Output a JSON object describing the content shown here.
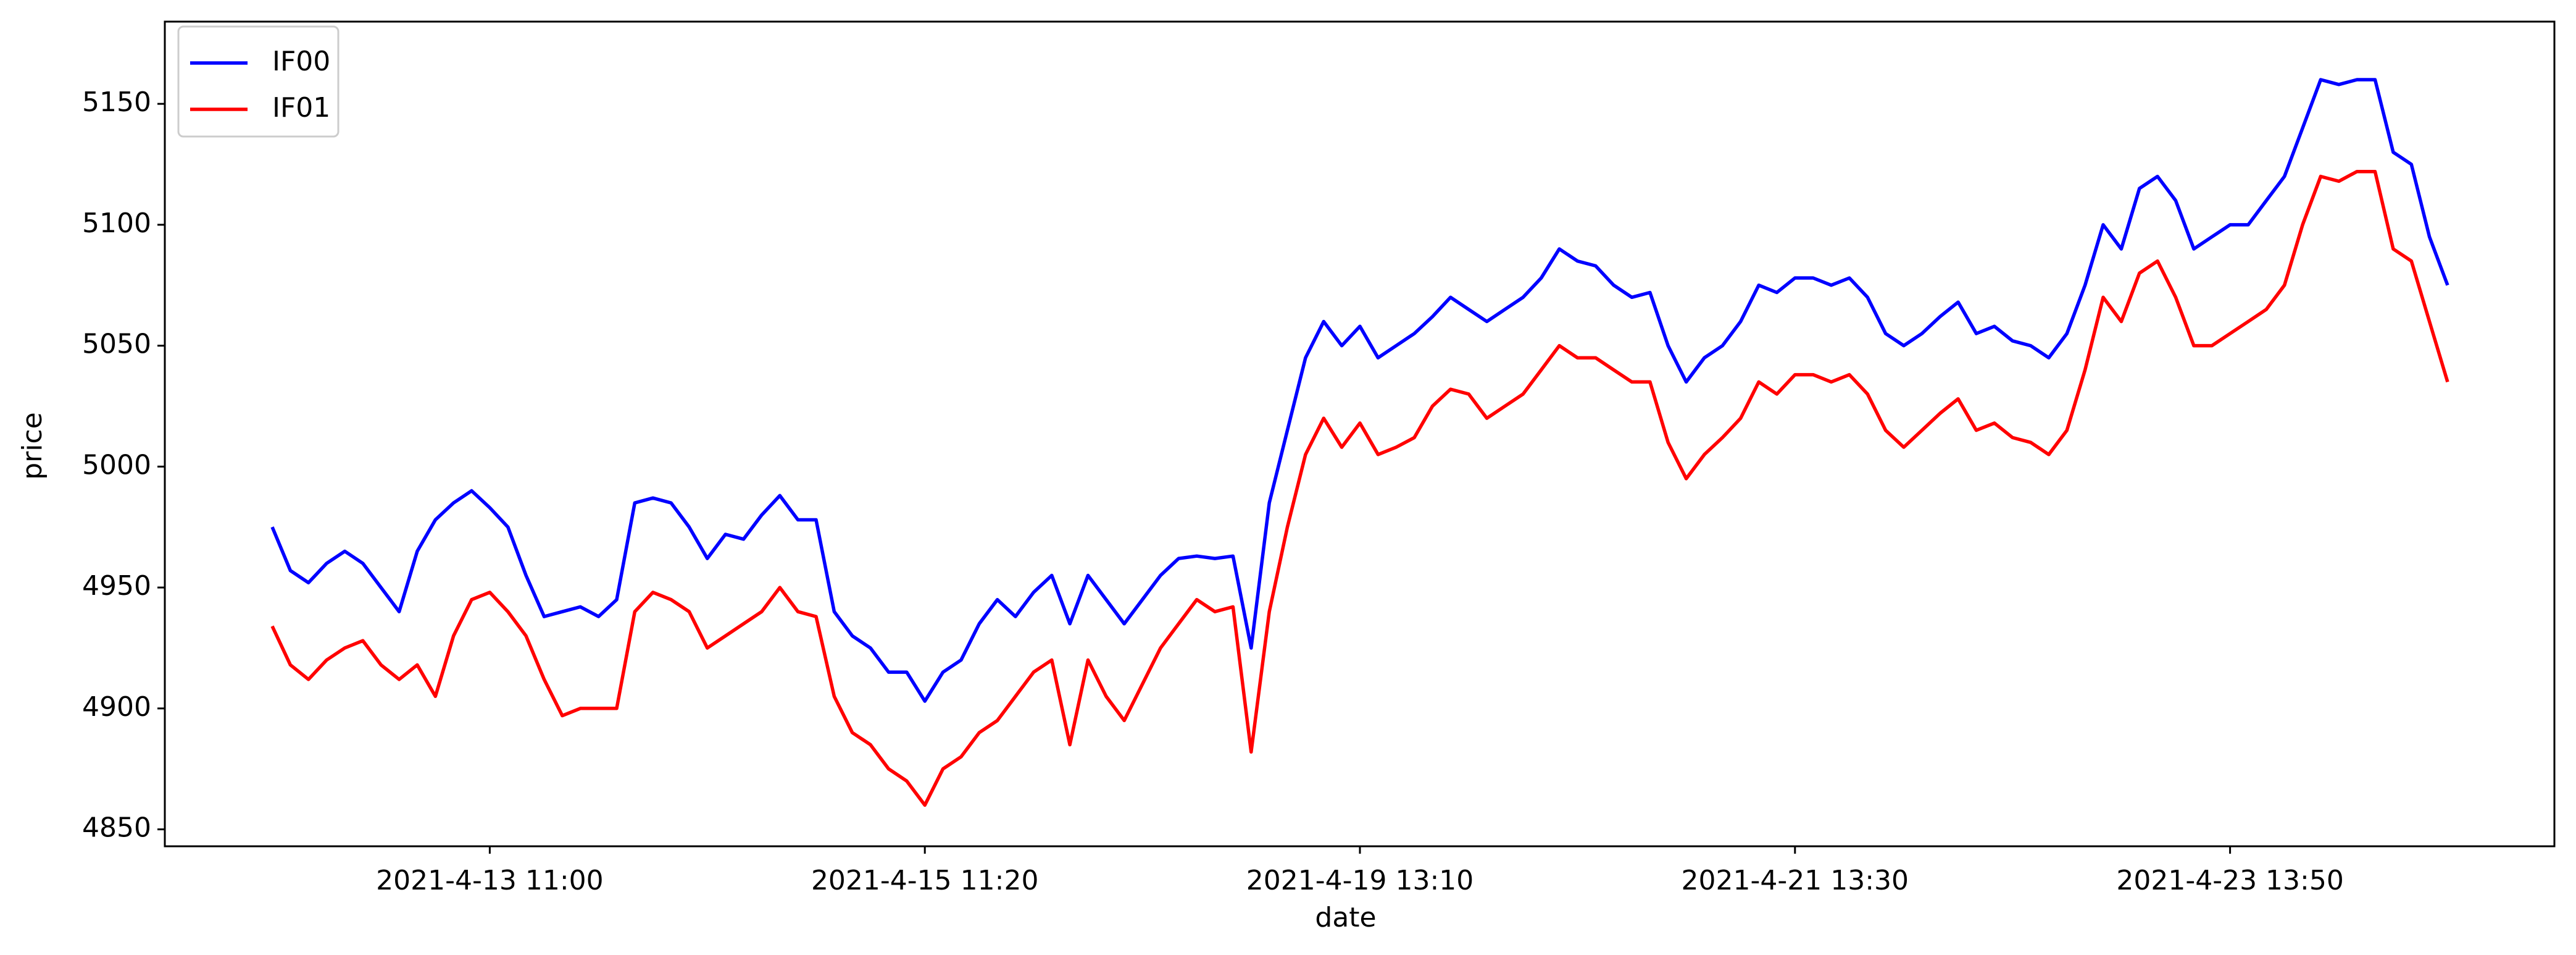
{
  "chart_data": {
    "type": "line",
    "xlabel": "date",
    "ylabel": "price",
    "categories": [
      null,
      null,
      null,
      null,
      null,
      null,
      null,
      null,
      null,
      null,
      null,
      null,
      "2021-4-13 11:00",
      null,
      null,
      null,
      null,
      null,
      null,
      null,
      null,
      null,
      null,
      null,
      null,
      null,
      null,
      null,
      null,
      null,
      null,
      null,
      null,
      null,
      null,
      null,
      "2021-4-15 11:20",
      null,
      null,
      null,
      null,
      null,
      null,
      null,
      null,
      null,
      null,
      null,
      null,
      null,
      null,
      null,
      null,
      null,
      null,
      null,
      null,
      null,
      null,
      null,
      "2021-4-19 13:10",
      null,
      null,
      null,
      null,
      null,
      null,
      null,
      null,
      null,
      null,
      null,
      null,
      null,
      null,
      null,
      null,
      null,
      null,
      null,
      null,
      null,
      null,
      null,
      "2021-4-21 13:30",
      null,
      null,
      null,
      null,
      null,
      null,
      null,
      null,
      null,
      null,
      null,
      null,
      null,
      null,
      null,
      null,
      null,
      null,
      null,
      null,
      null,
      null,
      null,
      "2021-4-23 13:50",
      null,
      null,
      null,
      null,
      null,
      null,
      null,
      null,
      null,
      null,
      null,
      null
    ],
    "series": [
      {
        "name": "IF00",
        "color": "#0000ff",
        "values": [
          4975,
          4957,
          4952,
          4960,
          4965,
          4960,
          4950,
          4940,
          4965,
          4978,
          4985,
          4990,
          4983,
          4975,
          4955,
          4938,
          4940,
          4942,
          4938,
          4945,
          4985,
          4987,
          4985,
          4975,
          4962,
          4972,
          4970,
          4980,
          4988,
          4978,
          4978,
          4940,
          4930,
          4925,
          4915,
          4915,
          4903,
          4915,
          4920,
          4935,
          4945,
          4938,
          4948,
          4955,
          4935,
          4955,
          4945,
          4935,
          4945,
          4955,
          4962,
          4963,
          4962,
          4963,
          4925,
          4985,
          5015,
          5045,
          5060,
          5050,
          5058,
          5045,
          5050,
          5055,
          5062,
          5070,
          5065,
          5060,
          5065,
          5070,
          5078,
          5090,
          5085,
          5083,
          5075,
          5070,
          5072,
          5050,
          5035,
          5045,
          5050,
          5060,
          5075,
          5072,
          5078,
          5078,
          5075,
          5078,
          5070,
          5055,
          5050,
          5055,
          5062,
          5068,
          5055,
          5058,
          5052,
          5050,
          5045,
          5055,
          5075,
          5100,
          5090,
          5115,
          5120,
          5110,
          5090,
          5095,
          5100,
          5100,
          5110,
          5120,
          5140,
          5160,
          5158,
          5160,
          5160,
          5130,
          5125,
          5095,
          5075
        ]
      },
      {
        "name": "IF01",
        "color": "#ff0000",
        "values": [
          4934,
          4918,
          4912,
          4920,
          4925,
          4928,
          4918,
          4912,
          4918,
          4905,
          4930,
          4945,
          4948,
          4940,
          4930,
          4912,
          4897,
          4900,
          4900,
          4900,
          4940,
          4948,
          4945,
          4940,
          4925,
          4930,
          4935,
          4940,
          4950,
          4940,
          4938,
          4905,
          4890,
          4885,
          4875,
          4870,
          4860,
          4875,
          4880,
          4890,
          4895,
          4905,
          4915,
          4920,
          4885,
          4920,
          4905,
          4895,
          4910,
          4925,
          4935,
          4945,
          4940,
          4942,
          4882,
          4940,
          4975,
          5005,
          5020,
          5008,
          5018,
          5005,
          5008,
          5012,
          5025,
          5032,
          5030,
          5020,
          5025,
          5030,
          5040,
          5050,
          5045,
          5045,
          5040,
          5035,
          5035,
          5010,
          4995,
          5005,
          5012,
          5020,
          5035,
          5030,
          5038,
          5038,
          5035,
          5038,
          5030,
          5015,
          5008,
          5015,
          5022,
          5028,
          5015,
          5018,
          5012,
          5010,
          5005,
          5015,
          5040,
          5070,
          5060,
          5080,
          5085,
          5070,
          5050,
          5050,
          5055,
          5060,
          5065,
          5075,
          5100,
          5120,
          5118,
          5122,
          5122,
          5090,
          5085,
          5060,
          5035
        ]
      }
    ],
    "ylim": [
      4843,
      5184
    ],
    "yticks": [
      4850,
      4900,
      4950,
      5000,
      5050,
      5100,
      5150
    ],
    "grid": false,
    "legend": "upper left"
  }
}
